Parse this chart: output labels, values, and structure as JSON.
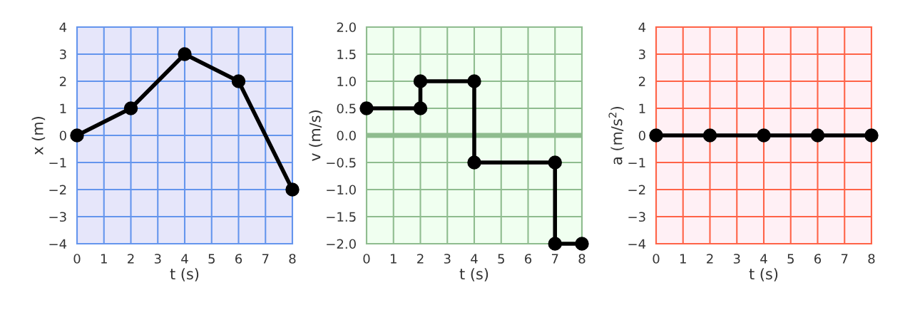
{
  "chart_data": [
    {
      "type": "line",
      "xlabel": "t (s)",
      "ylabel": "x (m)",
      "x": [
        0,
        2,
        4,
        6,
        8
      ],
      "grid": true,
      "marker": "circle",
      "line_style": "solid",
      "series": [
        {
          "color": "#000000",
          "values": [
            0,
            1,
            3,
            2,
            -2
          ]
        }
      ],
      "xlim": [
        0,
        8
      ],
      "xticks": [
        0,
        1,
        2,
        3,
        4,
        5,
        6,
        7,
        8
      ],
      "ylim": [
        -4,
        4
      ],
      "yticks": [
        {
          "value": -4,
          "label": "−4"
        },
        {
          "value": -3,
          "label": "−3"
        },
        {
          "value": -2,
          "label": "−2"
        },
        {
          "value": -1,
          "label": "−1"
        },
        0,
        1,
        2,
        3,
        4
      ]
    },
    {
      "type": "line",
      "xlabel": "t (s)",
      "ylabel": "v (m/s)",
      "x": [
        0,
        2,
        2,
        4,
        4,
        7,
        7,
        8
      ],
      "grid": true,
      "marker": "circle",
      "line_style": "solid",
      "series": [
        {
          "color": "#000000",
          "values": [
            0.5,
            0.5,
            1,
            1,
            -0.5,
            -0.5,
            -2,
            -2
          ]
        }
      ],
      "ref_lines": [
        {
          "axis": "y",
          "value": 0,
          "color": "#8fbc8f",
          "line_style": "solid"
        }
      ],
      "xlim": [
        0,
        8
      ],
      "xticks": [
        0,
        1,
        2,
        3,
        4,
        5,
        6,
        7,
        8
      ],
      "ylim": [
        -2,
        2
      ],
      "yticks": [
        {
          "value": -2,
          "label": "−2.0"
        },
        {
          "value": -1.5,
          "label": "−1.5"
        },
        {
          "value": -1,
          "label": "−1.0"
        },
        {
          "value": -0.5,
          "label": "−0.5"
        },
        {
          "value": 0,
          "label": "0.0"
        },
        {
          "value": 0.5,
          "label": "0.5"
        },
        {
          "value": 1,
          "label": "1.0"
        },
        {
          "value": 1.5,
          "label": "1.5"
        },
        {
          "value": 2,
          "label": "2.0"
        }
      ]
    },
    {
      "type": "line",
      "xlabel": "t (s)",
      "ylabel": "a (m/s$^{2}$)",
      "x": [
        0,
        2,
        4,
        6,
        8
      ],
      "grid": true,
      "marker": "circle",
      "line_style": "solid",
      "series": [
        {
          "color": "#000000",
          "values": [
            0,
            0,
            0,
            0,
            0
          ]
        }
      ],
      "xlim": [
        0,
        8
      ],
      "xticks": [
        0,
        1,
        2,
        3,
        4,
        5,
        6,
        7,
        8
      ],
      "ylim": [
        -4,
        4
      ],
      "yticks": [
        {
          "value": -4,
          "label": "−4"
        },
        {
          "value": -3,
          "label": "−3"
        },
        {
          "value": -2,
          "label": "−2"
        },
        {
          "value": -1,
          "label": "−1"
        },
        0,
        1,
        2,
        3,
        4
      ]
    }
  ]
}
